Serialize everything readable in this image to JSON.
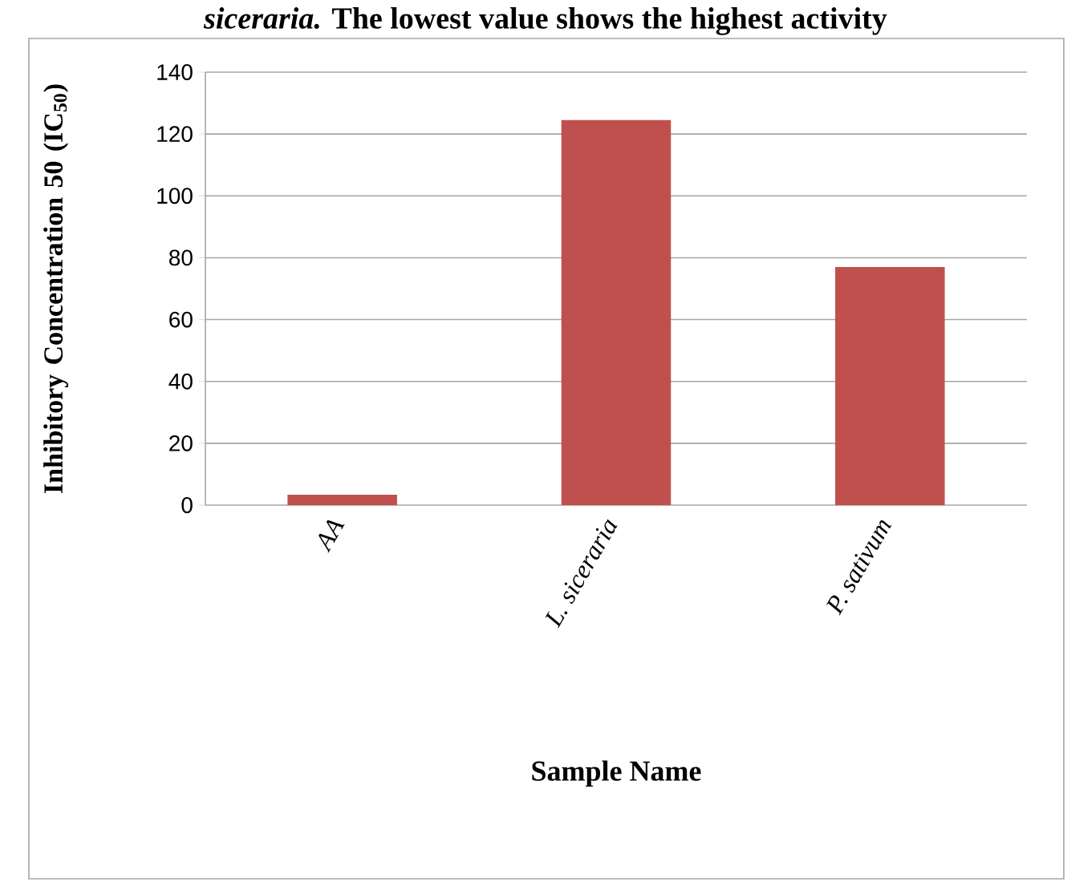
{
  "chart_data": {
    "type": "bar",
    "title": "*siceraria.* The lowest value shows the highest activity",
    "xlabel": "Sample Name",
    "ylabel": "Inhibitory Concentration 50 (IC$_{50}$)",
    "categories": [
      "AA",
      "L. siceraria",
      "P. sativum"
    ],
    "values": [
      3.4,
      124.5,
      77
    ],
    "color": "#c0504d",
    "ylim": [
      0,
      140
    ],
    "yticks": [
      0,
      20,
      40,
      60,
      80,
      100,
      120,
      140
    ],
    "grid": "y"
  }
}
